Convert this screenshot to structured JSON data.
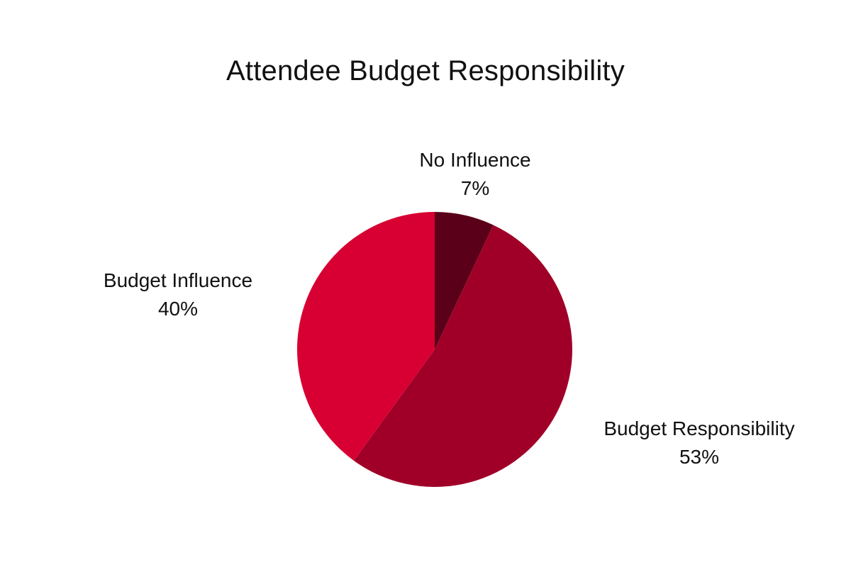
{
  "chart_data": {
    "type": "pie",
    "title": "Attendee Budget Responsibility",
    "slices": [
      {
        "label": "No Influence",
        "value": 7,
        "value_label": "7%",
        "color": "#5a0018"
      },
      {
        "label": "Budget Responsibility",
        "value": 53,
        "value_label": "53%",
        "color": "#a00028"
      },
      {
        "label": "Budget Influence",
        "value": 40,
        "value_label": "40%",
        "color": "#d80032"
      }
    ],
    "start_angle": "12 o'clock",
    "direction": "clockwise",
    "legend": "none (labels beside slices)"
  }
}
